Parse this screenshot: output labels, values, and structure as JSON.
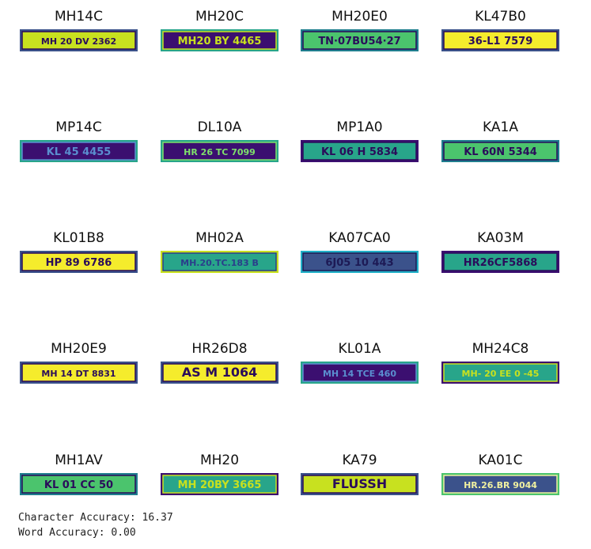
{
  "colors": {
    "yellow": "#f5ec2c",
    "lime": "#c8e11f",
    "green": "#4bc46d",
    "teal": "#28a58a",
    "blue": "#3b528b",
    "purple": "#3b0f70",
    "dark": "#2a0c5a",
    "cyan": "#21b0c8"
  },
  "samples": [
    {
      "label": "MH14C",
      "plate_text": "MH 20 DV 2362",
      "style": "lime_dark"
    },
    {
      "label": "MH20C",
      "plate_text": "MH20 BY 4465",
      "style": "dark_lime"
    },
    {
      "label": "MH20E0",
      "plate_text": "TN·07BU54·27",
      "style": "green_dark"
    },
    {
      "label": "KL47B0",
      "plate_text": "36-L1 7579",
      "style": "yellow_dark"
    },
    {
      "label": "MP14C",
      "plate_text": "KL 45 4455",
      "style": "dark_blue"
    },
    {
      "label": "DL10A",
      "plate_text": "HR 26 TC 7099",
      "style": "dark_green"
    },
    {
      "label": "MP1A0",
      "plate_text": "KL 06 H 5834",
      "style": "teal_dark"
    },
    {
      "label": "KA1A",
      "plate_text": "KL 60N 5344",
      "style": "green_dark"
    },
    {
      "label": "KL01B8",
      "plate_text": "HP 89 6786",
      "style": "yellow_dark"
    },
    {
      "label": "MH02A",
      "plate_text": "MH.20.TC.183 B",
      "style": "teal_blue"
    },
    {
      "label": "KA07CA0",
      "plate_text": "6J05 10 443",
      "style": "blue_dark"
    },
    {
      "label": "KA03M",
      "plate_text": "HR26CF5868",
      "style": "teal_dark"
    },
    {
      "label": "MH20E9",
      "plate_text": "MH 14 DT 8831",
      "style": "yellow_dark"
    },
    {
      "label": "HR26D8",
      "plate_text": "AS M 1064",
      "style": "yellow_dark"
    },
    {
      "label": "KL01A",
      "plate_text": "MH 14 TCE 460",
      "style": "dark_blue"
    },
    {
      "label": "MH24C8",
      "plate_text": "MH- 20 EE 0 -45",
      "style": "teal_lime"
    },
    {
      "label": "MH1AV",
      "plate_text": "KL 01 CC 50",
      "style": "green_dark"
    },
    {
      "label": "MH20",
      "plate_text": "MH 20BY 3665",
      "style": "teal_lime"
    },
    {
      "label": "KA79",
      "plate_text": "FLUSSH",
      "style": "lime_dark"
    },
    {
      "label": "KA01C",
      "plate_text": "HR.26.BR 9044",
      "style": "blue_lime"
    }
  ],
  "metrics": {
    "character_accuracy": "Character Accuracy: 16.37",
    "word_accuracy": "Word Accuracy: 0.00"
  }
}
